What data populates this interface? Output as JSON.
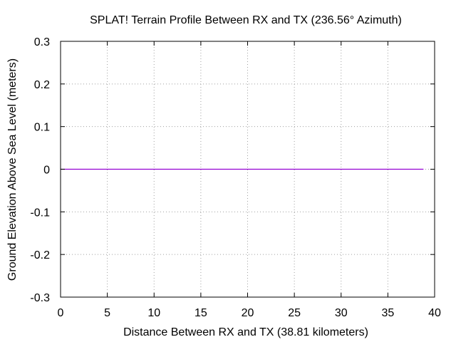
{
  "chart_data": {
    "type": "line",
    "title": "SPLAT! Terrain Profile Between RX  and TX  (236.56° Azimuth)",
    "xlabel": "Distance Between RX  and TX  (38.81 kilometers)",
    "ylabel": "Ground Elevation Above Sea Level (meters)",
    "xlim": [
      0,
      40
    ],
    "ylim": [
      -0.3,
      0.3
    ],
    "x_ticks": [
      0,
      5,
      10,
      15,
      20,
      25,
      30,
      35,
      40
    ],
    "y_ticks": [
      0.3,
      0.2,
      0.1,
      0,
      -0.1,
      -0.2,
      -0.3
    ],
    "y_tick_labels": [
      "0.3",
      "0.2",
      "0.1",
      "0",
      "-0.1",
      "-0.2",
      "-0.3"
    ],
    "grid": true,
    "series": [
      {
        "color": "#9400d3",
        "x": [
          0,
          38.81
        ],
        "y": [
          0,
          0
        ]
      }
    ]
  }
}
